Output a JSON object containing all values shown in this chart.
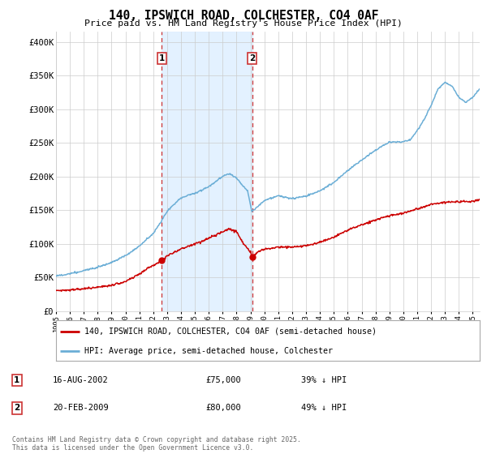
{
  "title": "140, IPSWICH ROAD, COLCHESTER, CO4 0AF",
  "subtitle": "Price paid vs. HM Land Registry's House Price Index (HPI)",
  "ylabel_ticks": [
    "£0",
    "£50K",
    "£100K",
    "£150K",
    "£200K",
    "£250K",
    "£300K",
    "£350K",
    "£400K"
  ],
  "ytick_vals": [
    0,
    50000,
    100000,
    150000,
    200000,
    250000,
    300000,
    350000,
    400000
  ],
  "ylim": [
    0,
    415000
  ],
  "xlim_start": 1995.0,
  "xlim_end": 2025.5,
  "hpi_color": "#6baed6",
  "price_color": "#cc0000",
  "shading_color": "#ddeeff",
  "vline_color": "#cc3333",
  "legend_label_red": "140, IPSWICH ROAD, COLCHESTER, CO4 0AF (semi-detached house)",
  "legend_label_blue": "HPI: Average price, semi-detached house, Colchester",
  "sale1_date": "16-AUG-2002",
  "sale1_price": "£75,000",
  "sale1_hpi": "39% ↓ HPI",
  "sale1_year": 2002.62,
  "sale1_price_val": 75000,
  "sale2_date": "20-FEB-2009",
  "sale2_price": "£80,000",
  "sale2_hpi": "49% ↓ HPI",
  "sale2_year": 2009.13,
  "sale2_price_val": 80000,
  "footnote": "Contains HM Land Registry data © Crown copyright and database right 2025.\nThis data is licensed under the Open Government Licence v3.0.",
  "background_color": "#ffffff",
  "grid_color": "#cccccc",
  "fig_width": 6.0,
  "fig_height": 5.6,
  "dpi": 100
}
